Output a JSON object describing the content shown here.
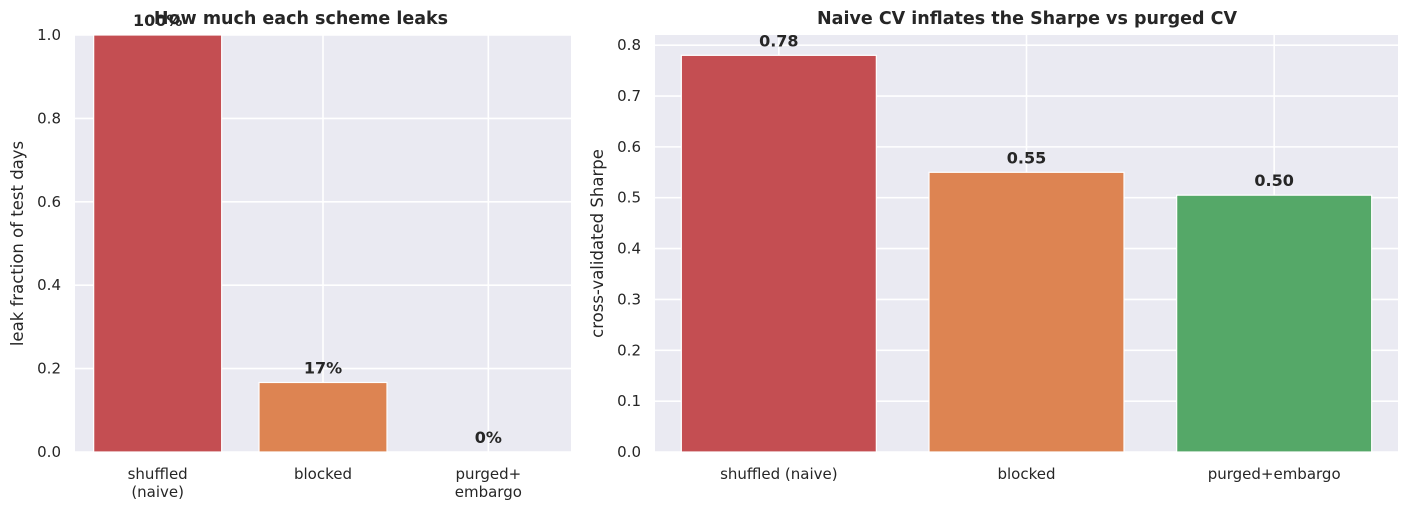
{
  "chart_data": [
    {
      "type": "bar",
      "title": "How much each scheme leaks",
      "xlabel": "",
      "ylabel": "leak fraction of test days",
      "categories": [
        [
          "shuffled",
          "(naive)"
        ],
        [
          "blocked"
        ],
        [
          "purged+",
          "embargo"
        ]
      ],
      "values": [
        1.0,
        0.1667,
        0.0
      ],
      "data_labels": [
        "100%",
        "17%",
        "0%"
      ],
      "colors": [
        "#c44e52",
        "#dd8452",
        "#55a868"
      ],
      "ylim": [
        0,
        1.0
      ],
      "yticks": [
        "0.0",
        "0.2",
        "0.4",
        "0.6",
        "0.8",
        "1.0"
      ],
      "ytick_values": [
        0,
        0.2,
        0.4,
        0.6,
        0.8,
        1.0
      ],
      "grid": true
    },
    {
      "type": "bar",
      "title": "Naive CV inflates the Sharpe vs purged CV",
      "xlabel": "",
      "ylabel": "cross-validated Sharpe",
      "categories": [
        [
          "shuffled (naive)"
        ],
        [
          "blocked"
        ],
        [
          "purged+embargo"
        ]
      ],
      "values": [
        0.78,
        0.55,
        0.505
      ],
      "data_labels": [
        "0.78",
        "0.55",
        "0.50"
      ],
      "colors": [
        "#c44e52",
        "#dd8452",
        "#55a868"
      ],
      "ylim": [
        0,
        0.82
      ],
      "yticks": [
        "0.0",
        "0.1",
        "0.2",
        "0.3",
        "0.4",
        "0.5",
        "0.6",
        "0.7",
        "0.8"
      ],
      "ytick_values": [
        0,
        0.1,
        0.2,
        0.3,
        0.4,
        0.5,
        0.6,
        0.7,
        0.8
      ],
      "grid": true
    }
  ]
}
